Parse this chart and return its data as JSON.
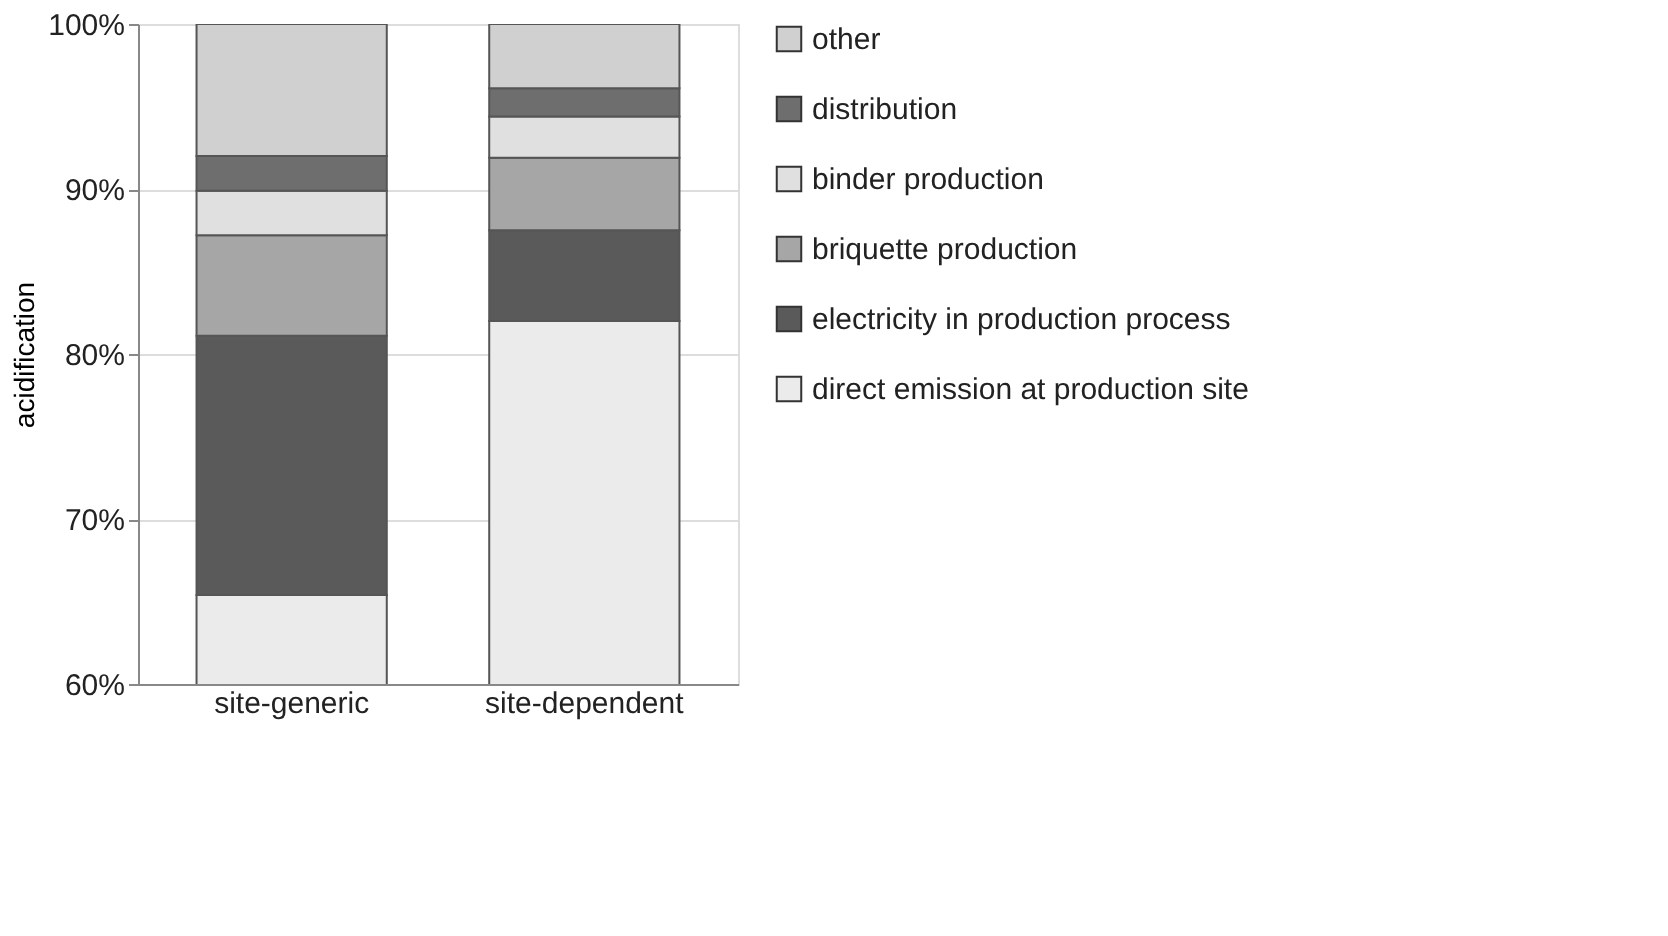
{
  "chart_data": {
    "type": "bar",
    "ylabel": "acidification",
    "categories": [
      "site-generic",
      "site-dependent"
    ],
    "series": [
      {
        "name": "direct emission at production site",
        "color": "#ebebeb",
        "values": [
          65.4,
          82.0
        ],
        "base": [
          0,
          0
        ]
      },
      {
        "name": "electricity in production process",
        "color": "#5a5a5a",
        "values": [
          15.7,
          5.5
        ],
        "base": [
          65.4,
          82.0
        ]
      },
      {
        "name": "briquette production",
        "color": "#a6a6a6",
        "values": [
          6.1,
          4.4
        ],
        "base": [
          81.1,
          87.5
        ]
      },
      {
        "name": "binder production",
        "color": "#e0e0e0",
        "values": [
          2.7,
          2.5
        ],
        "base": [
          87.2,
          91.9
        ]
      },
      {
        "name": "distribution",
        "color": "#6e6e6e",
        "values": [
          2.1,
          1.7
        ],
        "base": [
          89.9,
          94.4
        ]
      },
      {
        "name": "other",
        "color": "#d0d0d0",
        "values": [
          8.0,
          3.9
        ],
        "base": [
          92.0,
          96.1
        ]
      }
    ],
    "ylim": [
      60,
      100
    ],
    "yticks": [
      {
        "value": 60,
        "label": "60%"
      },
      {
        "value": 70,
        "label": "70%"
      },
      {
        "value": 80,
        "label": "80%"
      },
      {
        "value": 90,
        "label": "90%"
      },
      {
        "value": 100,
        "label": "100%"
      }
    ],
    "grid": "y",
    "legend": "right"
  }
}
